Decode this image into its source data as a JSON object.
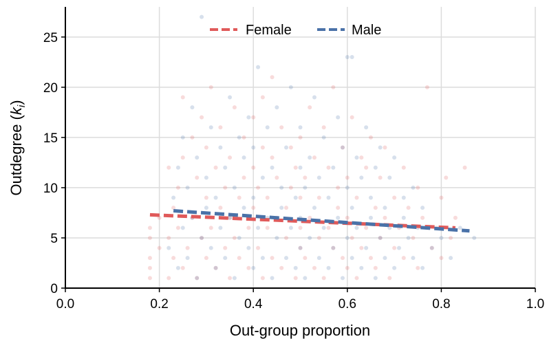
{
  "chart_data": {
    "type": "scatter",
    "title": "",
    "xlabel": "Out-group proportion",
    "ylabel": "Outdegree (",
    "ylabel_math": "k",
    "ylabel_sub": "i",
    "ylabel_close": ")",
    "xlim": [
      0.0,
      1.0
    ],
    "ylim": [
      0,
      28
    ],
    "xticks": [
      0.0,
      0.2,
      0.4,
      0.6,
      0.8,
      1.0
    ],
    "xtick_labels": [
      "0.0",
      "0.2",
      "0.4",
      "0.6",
      "0.8",
      "1.0"
    ],
    "yticks": [
      0,
      5,
      10,
      15,
      20,
      25
    ],
    "ytick_labels": [
      "0",
      "5",
      "10",
      "15",
      "20",
      "25"
    ],
    "grid": true,
    "legend": {
      "placement": "top-center",
      "style": "dashed"
    },
    "series": [
      {
        "name": "Female",
        "color": "#e05a5a",
        "points": [
          [
            0.18,
            1
          ],
          [
            0.18,
            2
          ],
          [
            0.18,
            3
          ],
          [
            0.18,
            5
          ],
          [
            0.18,
            6
          ],
          [
            0.2,
            4
          ],
          [
            0.2,
            7
          ],
          [
            0.22,
            1
          ],
          [
            0.22,
            5
          ],
          [
            0.22,
            12
          ],
          [
            0.23,
            3
          ],
          [
            0.23,
            8
          ],
          [
            0.24,
            6
          ],
          [
            0.24,
            10
          ],
          [
            0.25,
            2
          ],
          [
            0.25,
            13
          ],
          [
            0.25,
            19
          ],
          [
            0.26,
            4
          ],
          [
            0.27,
            7
          ],
          [
            0.27,
            15
          ],
          [
            0.28,
            1
          ],
          [
            0.28,
            11
          ],
          [
            0.29,
            5
          ],
          [
            0.29,
            17
          ],
          [
            0.3,
            3
          ],
          [
            0.3,
            9
          ],
          [
            0.3,
            14
          ],
          [
            0.31,
            6
          ],
          [
            0.31,
            20
          ],
          [
            0.32,
            2
          ],
          [
            0.32,
            12
          ],
          [
            0.33,
            8
          ],
          [
            0.33,
            16
          ],
          [
            0.34,
            4
          ],
          [
            0.34,
            10
          ],
          [
            0.35,
            1
          ],
          [
            0.35,
            7
          ],
          [
            0.35,
            13
          ],
          [
            0.36,
            5
          ],
          [
            0.36,
            18
          ],
          [
            0.37,
            3
          ],
          [
            0.37,
            9
          ],
          [
            0.38,
            11
          ],
          [
            0.38,
            15
          ],
          [
            0.39,
            6
          ],
          [
            0.39,
            2
          ],
          [
            0.4,
            8
          ],
          [
            0.4,
            12
          ],
          [
            0.4,
            17
          ],
          [
            0.41,
            4
          ],
          [
            0.41,
            10
          ],
          [
            0.42,
            1
          ],
          [
            0.42,
            14
          ],
          [
            0.42,
            19
          ],
          [
            0.43,
            6
          ],
          [
            0.43,
            9
          ],
          [
            0.44,
            3
          ],
          [
            0.44,
            13
          ],
          [
            0.44,
            21
          ],
          [
            0.45,
            7
          ],
          [
            0.45,
            11
          ],
          [
            0.46,
            2
          ],
          [
            0.46,
            16
          ],
          [
            0.47,
            5
          ],
          [
            0.47,
            8
          ],
          [
            0.48,
            10
          ],
          [
            0.48,
            14
          ],
          [
            0.49,
            1
          ],
          [
            0.49,
            12
          ],
          [
            0.5,
            4
          ],
          [
            0.5,
            6
          ],
          [
            0.5,
            9
          ],
          [
            0.5,
            15
          ],
          [
            0.51,
            3
          ],
          [
            0.51,
            11
          ],
          [
            0.52,
            7
          ],
          [
            0.52,
            18
          ],
          [
            0.53,
            2
          ],
          [
            0.53,
            13
          ],
          [
            0.54,
            5
          ],
          [
            0.54,
            9
          ],
          [
            0.55,
            1
          ],
          [
            0.55,
            16
          ],
          [
            0.56,
            6
          ],
          [
            0.56,
            12
          ],
          [
            0.57,
            4
          ],
          [
            0.57,
            20
          ],
          [
            0.58,
            8
          ],
          [
            0.58,
            10
          ],
          [
            0.59,
            3
          ],
          [
            0.59,
            14
          ],
          [
            0.6,
            2
          ],
          [
            0.6,
            7
          ],
          [
            0.6,
            11
          ],
          [
            0.61,
            5
          ],
          [
            0.61,
            17
          ],
          [
            0.62,
            1
          ],
          [
            0.62,
            9
          ],
          [
            0.63,
            4
          ],
          [
            0.63,
            13
          ],
          [
            0.64,
            6
          ],
          [
            0.64,
            12
          ],
          [
            0.65,
            3
          ],
          [
            0.65,
            15
          ],
          [
            0.66,
            8
          ],
          [
            0.66,
            2
          ],
          [
            0.67,
            5
          ],
          [
            0.67,
            11
          ],
          [
            0.68,
            7
          ],
          [
            0.68,
            14
          ],
          [
            0.69,
            1
          ],
          [
            0.7,
            4
          ],
          [
            0.7,
            9
          ],
          [
            0.71,
            6
          ],
          [
            0.72,
            3
          ],
          [
            0.72,
            12
          ],
          [
            0.73,
            8
          ],
          [
            0.74,
            5
          ],
          [
            0.75,
            10
          ],
          [
            0.75,
            2
          ],
          [
            0.76,
            7
          ],
          [
            0.77,
            20
          ],
          [
            0.78,
            4
          ],
          [
            0.79,
            6
          ],
          [
            0.8,
            3
          ],
          [
            0.8,
            9
          ],
          [
            0.81,
            11
          ],
          [
            0.82,
            5
          ],
          [
            0.83,
            7
          ],
          [
            0.85,
            12
          ]
        ],
        "trend": {
          "x": [
            0.18,
            0.83
          ],
          "y": [
            7.3,
            6.0
          ]
        }
      },
      {
        "name": "Male",
        "color": "#4a72a8",
        "points": [
          [
            0.22,
            4
          ],
          [
            0.23,
            9
          ],
          [
            0.24,
            2
          ],
          [
            0.24,
            12
          ],
          [
            0.25,
            6
          ],
          [
            0.25,
            15
          ],
          [
            0.26,
            3
          ],
          [
            0.26,
            10
          ],
          [
            0.27,
            7
          ],
          [
            0.27,
            18
          ],
          [
            0.28,
            1
          ],
          [
            0.28,
            13
          ],
          [
            0.29,
            5
          ],
          [
            0.29,
            27
          ],
          [
            0.3,
            8
          ],
          [
            0.3,
            11
          ],
          [
            0.31,
            4
          ],
          [
            0.31,
            16
          ],
          [
            0.32,
            2
          ],
          [
            0.32,
            9
          ],
          [
            0.33,
            6
          ],
          [
            0.33,
            14
          ],
          [
            0.34,
            3
          ],
          [
            0.34,
            12
          ],
          [
            0.35,
            7
          ],
          [
            0.35,
            19
          ],
          [
            0.36,
            1
          ],
          [
            0.36,
            10
          ],
          [
            0.37,
            5
          ],
          [
            0.37,
            15
          ],
          [
            0.38,
            8
          ],
          [
            0.38,
            13
          ],
          [
            0.39,
            4
          ],
          [
            0.39,
            17
          ],
          [
            0.4,
            2
          ],
          [
            0.4,
            9
          ],
          [
            0.4,
            14
          ],
          [
            0.41,
            6
          ],
          [
            0.41,
            22
          ],
          [
            0.42,
            3
          ],
          [
            0.42,
            11
          ],
          [
            0.43,
            7
          ],
          [
            0.43,
            16
          ],
          [
            0.44,
            1
          ],
          [
            0.44,
            12
          ],
          [
            0.45,
            5
          ],
          [
            0.45,
            18
          ],
          [
            0.46,
            8
          ],
          [
            0.46,
            10
          ],
          [
            0.47,
            3
          ],
          [
            0.47,
            14
          ],
          [
            0.48,
            6
          ],
          [
            0.48,
            20
          ],
          [
            0.49,
            2
          ],
          [
            0.49,
            9
          ],
          [
            0.5,
            4
          ],
          [
            0.5,
            7
          ],
          [
            0.5,
            12
          ],
          [
            0.5,
            16
          ],
          [
            0.51,
            1
          ],
          [
            0.51,
            10
          ],
          [
            0.52,
            5
          ],
          [
            0.52,
            13
          ],
          [
            0.53,
            8
          ],
          [
            0.53,
            19
          ],
          [
            0.54,
            3
          ],
          [
            0.54,
            11
          ],
          [
            0.55,
            6
          ],
          [
            0.55,
            15
          ],
          [
            0.56,
            2
          ],
          [
            0.56,
            9
          ],
          [
            0.57,
            4
          ],
          [
            0.57,
            12
          ],
          [
            0.58,
            7
          ],
          [
            0.58,
            17
          ],
          [
            0.59,
            1
          ],
          [
            0.59,
            14
          ],
          [
            0.6,
            5
          ],
          [
            0.6,
            10
          ],
          [
            0.6,
            23
          ],
          [
            0.61,
            3
          ],
          [
            0.61,
            8
          ],
          [
            0.61,
            23
          ],
          [
            0.62,
            6
          ],
          [
            0.62,
            13
          ],
          [
            0.63,
            2
          ],
          [
            0.63,
            11
          ],
          [
            0.64,
            4
          ],
          [
            0.64,
            16
          ],
          [
            0.65,
            7
          ],
          [
            0.65,
            9
          ],
          [
            0.66,
            1
          ],
          [
            0.66,
            12
          ],
          [
            0.67,
            5
          ],
          [
            0.67,
            14
          ],
          [
            0.68,
            3
          ],
          [
            0.68,
            8
          ],
          [
            0.69,
            6
          ],
          [
            0.69,
            11
          ],
          [
            0.7,
            2
          ],
          [
            0.7,
            13
          ],
          [
            0.71,
            4
          ],
          [
            0.72,
            9
          ],
          [
            0.72,
            7
          ],
          [
            0.73,
            5
          ],
          [
            0.74,
            3
          ],
          [
            0.74,
            10
          ],
          [
            0.75,
            6
          ],
          [
            0.76,
            2
          ],
          [
            0.76,
            8
          ],
          [
            0.78,
            4
          ],
          [
            0.8,
            5
          ],
          [
            0.82,
            3
          ],
          [
            0.84,
            6
          ],
          [
            0.87,
            5
          ]
        ],
        "trend": {
          "x": [
            0.23,
            0.86
          ],
          "y": [
            7.7,
            5.7
          ]
        }
      }
    ]
  }
}
